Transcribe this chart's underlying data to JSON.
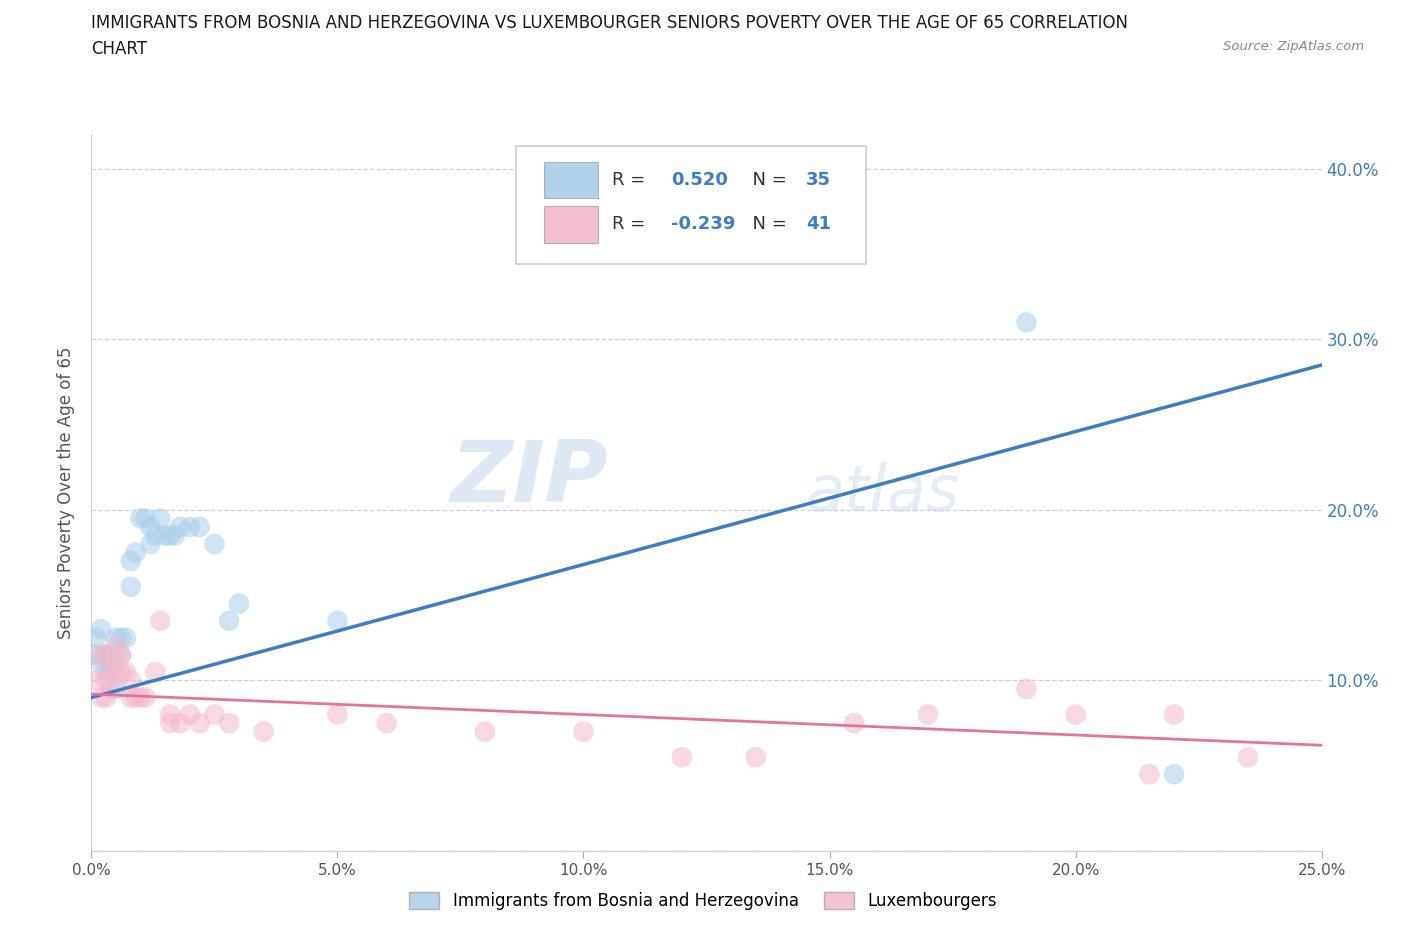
{
  "title_line1": "IMMIGRANTS FROM BOSNIA AND HERZEGOVINA VS LUXEMBOURGER SENIORS POVERTY OVER THE AGE OF 65 CORRELATION",
  "title_line2": "CHART",
  "source": "Source: ZipAtlas.com",
  "ylabel": "Seniors Poverty Over the Age of 65",
  "legend_bottom": [
    "Immigrants from Bosnia and Herzegovina",
    "Luxembourgers"
  ],
  "R_blue": 0.52,
  "N_blue": 35,
  "R_pink": -0.239,
  "N_pink": 41,
  "blue_color": "#a8cfe8",
  "pink_color": "#f4b8cb",
  "line_blue": "#3a7dc9",
  "line_pink": "#e8739a",
  "watermark_zip": "ZIP",
  "watermark_atlas": "atlas",
  "xlim": [
    0.0,
    0.25
  ],
  "ylim": [
    0.0,
    0.42
  ],
  "blue_scatter_x": [
    0.001,
    0.001,
    0.002,
    0.002,
    0.003,
    0.003,
    0.003,
    0.004,
    0.004,
    0.005,
    0.005,
    0.006,
    0.006,
    0.007,
    0.008,
    0.008,
    0.009,
    0.01,
    0.011,
    0.012,
    0.012,
    0.013,
    0.014,
    0.015,
    0.016,
    0.017,
    0.018,
    0.02,
    0.022,
    0.025,
    0.028,
    0.03,
    0.05,
    0.19,
    0.22
  ],
  "blue_scatter_y": [
    0.125,
    0.115,
    0.13,
    0.11,
    0.115,
    0.115,
    0.105,
    0.115,
    0.105,
    0.095,
    0.125,
    0.115,
    0.125,
    0.125,
    0.155,
    0.17,
    0.175,
    0.195,
    0.195,
    0.18,
    0.19,
    0.185,
    0.195,
    0.185,
    0.185,
    0.185,
    0.19,
    0.19,
    0.19,
    0.18,
    0.135,
    0.145,
    0.135,
    0.31,
    0.045
  ],
  "pink_scatter_x": [
    0.001,
    0.002,
    0.002,
    0.003,
    0.003,
    0.003,
    0.004,
    0.004,
    0.005,
    0.005,
    0.006,
    0.006,
    0.007,
    0.008,
    0.008,
    0.009,
    0.01,
    0.011,
    0.013,
    0.014,
    0.016,
    0.016,
    0.018,
    0.02,
    0.022,
    0.025,
    0.028,
    0.035,
    0.05,
    0.06,
    0.08,
    0.1,
    0.12,
    0.135,
    0.155,
    0.17,
    0.19,
    0.2,
    0.215,
    0.22,
    0.235
  ],
  "pink_scatter_y": [
    0.1,
    0.115,
    0.09,
    0.115,
    0.1,
    0.09,
    0.105,
    0.095,
    0.12,
    0.11,
    0.115,
    0.105,
    0.105,
    0.1,
    0.09,
    0.09,
    0.09,
    0.09,
    0.105,
    0.135,
    0.08,
    0.075,
    0.075,
    0.08,
    0.075,
    0.08,
    0.075,
    0.07,
    0.08,
    0.075,
    0.07,
    0.07,
    0.055,
    0.055,
    0.075,
    0.08,
    0.095,
    0.08,
    0.045,
    0.08,
    0.055
  ],
  "blue_line_x": [
    0.0,
    0.25
  ],
  "blue_line_y": [
    0.09,
    0.285
  ],
  "pink_line_x": [
    0.0,
    0.25
  ],
  "pink_line_y": [
    0.092,
    0.062
  ],
  "ytick_values": [
    0.0,
    0.1,
    0.2,
    0.3,
    0.4
  ],
  "xtick_values": [
    0.0,
    0.05,
    0.1,
    0.15,
    0.2,
    0.25
  ],
  "right_ytick_values": [
    0.1,
    0.2,
    0.3,
    0.4
  ],
  "background_color": "#ffffff",
  "grid_color": "#d0d0d0",
  "title_color": "#1a1a1a",
  "scatter_size": 220,
  "scatter_alpha": 0.55
}
